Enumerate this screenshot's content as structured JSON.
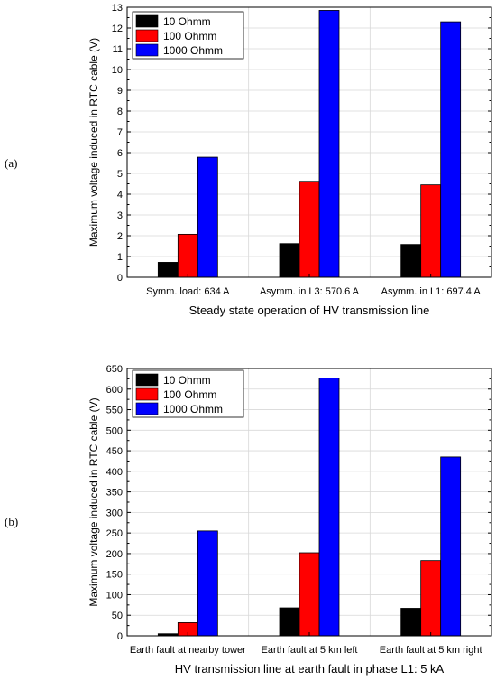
{
  "panel_labels": [
    "(a)",
    "(b)"
  ],
  "chart_data": [
    {
      "type": "bar",
      "panel": "(a)",
      "title": "",
      "xlabel": "Steady state operation of HV transmission line",
      "ylabel": "Maximum voltage induced in RTC cable (V)",
      "categories": [
        "Symm. load: 634 A",
        "Asymm. in L3: 570.6 A",
        "Asymm. in L1: 697.4 A"
      ],
      "series": [
        {
          "name": "10 Ohmm",
          "color": "#000000",
          "values": [
            0.72,
            1.62,
            1.58
          ]
        },
        {
          "name": "100 Ohmm",
          "color": "#ff0000",
          "values": [
            2.07,
            4.62,
            4.45
          ]
        },
        {
          "name": "1000 Ohmm",
          "color": "#0000ff",
          "values": [
            5.78,
            12.85,
            12.3
          ]
        }
      ],
      "ylim": [
        0,
        13
      ],
      "yticks": [
        0,
        1,
        2,
        3,
        4,
        5,
        6,
        7,
        8,
        9,
        10,
        11,
        12,
        13
      ],
      "grid": true,
      "legend_position": "top-left"
    },
    {
      "type": "bar",
      "panel": "(b)",
      "title": "",
      "xlabel": "HV transmission line at earth fault in phase L1: 5 kA",
      "ylabel": "Maximum voltage induced in RTC cable (V)",
      "categories": [
        "Earth fault at nearby tower",
        "Earth fault at 5 km left",
        "Earth fault at 5 km right"
      ],
      "series": [
        {
          "name": "10 Ohmm",
          "color": "#000000",
          "values": [
            5,
            68,
            67
          ]
        },
        {
          "name": "100 Ohmm",
          "color": "#ff0000",
          "values": [
            32,
            202,
            183
          ]
        },
        {
          "name": "1000 Ohmm",
          "color": "#0000ff",
          "values": [
            255,
            627,
            435
          ]
        }
      ],
      "ylim": [
        0,
        650
      ],
      "yticks": [
        0,
        50,
        100,
        150,
        200,
        250,
        300,
        350,
        400,
        450,
        500,
        550,
        600,
        650
      ],
      "grid": true,
      "legend_position": "top-left"
    }
  ]
}
